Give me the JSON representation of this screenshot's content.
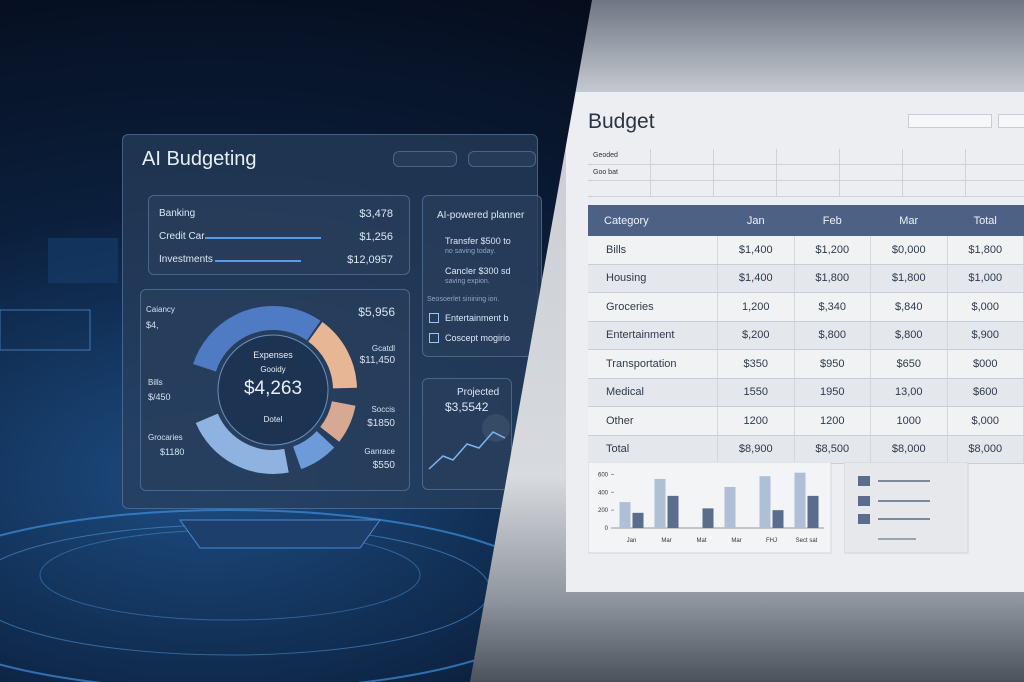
{
  "left": {
    "title": "AI Budgeting",
    "accounts": [
      {
        "label": "Banking",
        "value": "$3,478"
      },
      {
        "label": "Credit Car",
        "value": "$1,256"
      },
      {
        "label": "Investments",
        "value": "$12,0957"
      }
    ],
    "planner": {
      "title": "AI-powered planner",
      "items": [
        "Transfer $500 to",
        "no saving today.",
        "Cancler $300 sd",
        "saving expion.",
        "Seosoerlet sinining ion.",
        "Entertainment b",
        "Coscept mogirio"
      ]
    },
    "donut": {
      "center": [
        "Expenses",
        "Gooidy",
        "$4,263",
        "Dotel"
      ],
      "left_labels": [
        "Caiancy",
        "$4,",
        "Bills",
        "$/450",
        "Grocaries",
        "$1180"
      ],
      "right_labels": [
        "$5,956",
        "Gcatdl",
        "$11,450",
        "Soccis",
        "$1850",
        "Ganrace",
        "$550"
      ]
    },
    "projected": {
      "label": "Projected",
      "value": "$3,5542"
    }
  },
  "right": {
    "title": "Budget",
    "top_cells": [
      "Geoded",
      "Goo bat"
    ],
    "table": {
      "header": [
        "Category",
        "Jan",
        "Feb",
        "Mar",
        "Total"
      ],
      "rows": [
        [
          "Bills",
          "$1,400",
          "$1,200",
          "$0,000",
          "$1,800"
        ],
        [
          "Housing",
          "$1,400",
          "$1,800",
          "$1,800",
          "$1,000"
        ],
        [
          "Groceries",
          "1,200",
          "$,340",
          "$,840",
          "$,000"
        ],
        [
          "Entertainment",
          "$,200",
          "$,800",
          "$,800",
          "$,900"
        ],
        [
          "Transportation",
          "$350",
          "$950",
          "$650",
          "$000"
        ],
        [
          "Medical",
          "1550",
          "1950",
          "13,00",
          "$600"
        ],
        [
          "Other",
          "1200",
          "1200",
          "1000",
          "$,000"
        ],
        [
          "Total",
          "$8,900",
          "$8,500",
          "$8,000",
          "$8,000"
        ]
      ]
    },
    "mini_chart": {
      "type": "bar",
      "categories": [
        "Jan",
        "Mar",
        "Mat",
        "Mar",
        "FHJ",
        "Sect sat"
      ],
      "ylim": [
        0,
        650
      ],
      "yticks": [
        0,
        200,
        400,
        600
      ],
      "series": [
        {
          "color": "#aebfd6",
          "values": [
            290,
            550,
            null,
            460,
            580,
            620
          ]
        },
        {
          "color": "#5a6d8c",
          "values": [
            170,
            360,
            220,
            null,
            200,
            360
          ]
        }
      ]
    }
  }
}
